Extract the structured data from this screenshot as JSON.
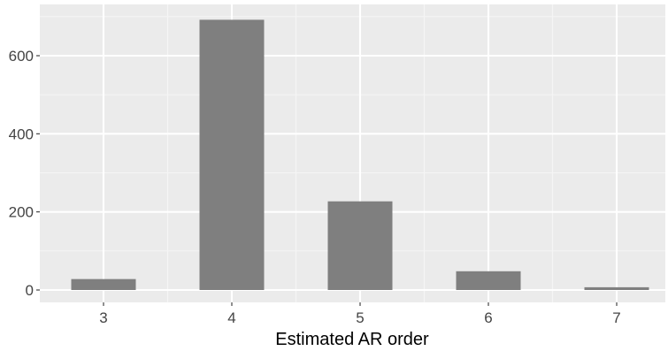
{
  "chart_data": {
    "type": "bar",
    "categories": [
      "3",
      "4",
      "5",
      "6",
      "7"
    ],
    "values": [
      28,
      692,
      227,
      48,
      7
    ],
    "title": "",
    "xlabel": "Estimated AR order",
    "ylabel": "",
    "ylim": [
      0,
      720
    ],
    "yticks": [
      0,
      200,
      400,
      600
    ],
    "grid": true,
    "legend": "none",
    "colors": {
      "bar": "#7f7f7f",
      "panel": "#ebebeb",
      "grid_major": "#ffffff",
      "grid_minor": "#f5f5f5"
    }
  }
}
